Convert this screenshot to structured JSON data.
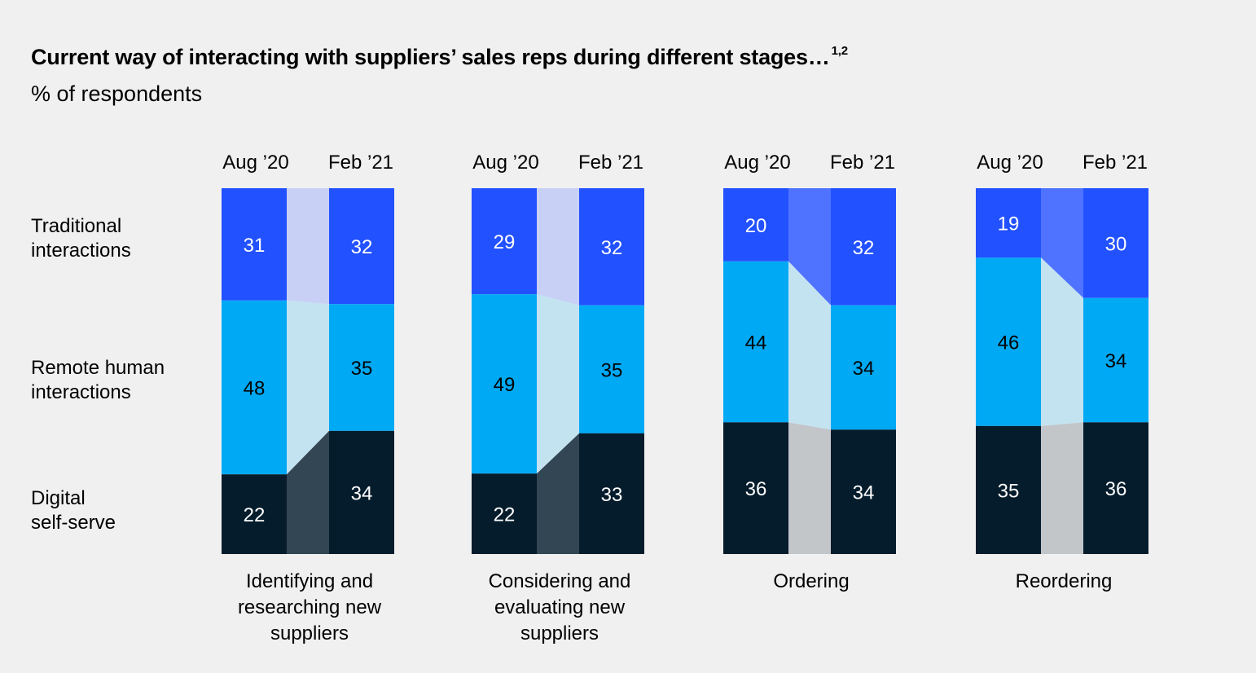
{
  "title": "Current way of interacting with suppliers’ sales reps during different stages…",
  "title_footnote": "1,2",
  "subtitle": "% of respondents",
  "chart_data": {
    "type": "bar",
    "stacked": true,
    "ylim": [
      0,
      100
    ],
    "period_labels": [
      "Aug ’20",
      "Feb ’21"
    ],
    "row_labels": [
      "Traditional interactions",
      "Remote human interactions",
      "Digital self-serve"
    ],
    "colors": {
      "traditional": "#2251ff",
      "remote": "#00a9f4",
      "digital": "#051c2c"
    },
    "connector_colors": {
      "light": {
        "traditional": "#c8d0f6",
        "remote": "#c4e3f1",
        "digital": "#324654"
      },
      "bright": {
        "traditional": "#4f73ff",
        "remote": "#c4e3f1",
        "digital": "#c2c6c9"
      }
    },
    "groups": [
      {
        "label": "Identifying and researching new suppliers",
        "connector_style": "light",
        "aug20": {
          "traditional": 31,
          "remote": 48,
          "digital": 22
        },
        "feb21": {
          "traditional": 32,
          "remote": 35,
          "digital": 34
        }
      },
      {
        "label": "Considering and evaluating new suppliers",
        "connector_style": "light",
        "aug20": {
          "traditional": 29,
          "remote": 49,
          "digital": 22
        },
        "feb21": {
          "traditional": 32,
          "remote": 35,
          "digital": 33
        }
      },
      {
        "label": "Ordering",
        "connector_style": "bright",
        "aug20": {
          "traditional": 20,
          "remote": 44,
          "digital": 36
        },
        "feb21": {
          "traditional": 32,
          "remote": 34,
          "digital": 34
        }
      },
      {
        "label": "Reordering",
        "connector_style": "bright",
        "aug20": {
          "traditional": 19,
          "remote": 46,
          "digital": 35
        },
        "feb21": {
          "traditional": 30,
          "remote": 34,
          "digital": 36
        }
      }
    ]
  }
}
